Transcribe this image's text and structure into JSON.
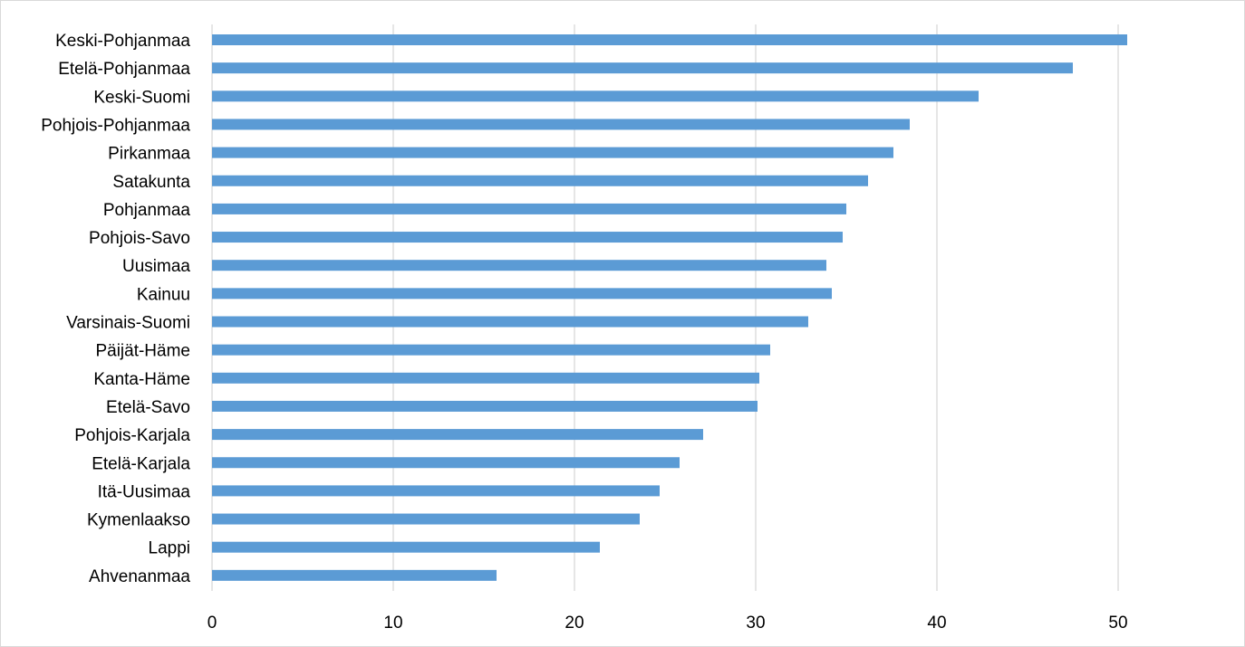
{
  "chart_data": {
    "type": "bar",
    "orientation": "horizontal",
    "title": "",
    "xlabel": "",
    "ylabel": "",
    "categories": [
      "Keski-Pohjanmaa",
      "Etelä-Pohjanmaa",
      "Keski-Suomi",
      "Pohjois-Pohjanmaa",
      "Pirkanmaa",
      "Satakunta",
      "Pohjanmaa",
      "Pohjois-Savo",
      "Uusimaa",
      "Kainuu",
      "Varsinais-Suomi",
      "Päijät-Häme",
      "Kanta-Häme",
      "Etelä-Savo",
      "Pohjois-Karjala",
      "Etelä-Karjala",
      "Itä-Uusimaa",
      "Kymenlaakso",
      "Lappi",
      "Ahvenanmaa"
    ],
    "values": [
      50.5,
      47.5,
      42.3,
      38.5,
      37.6,
      36.2,
      35.0,
      34.8,
      33.9,
      34.2,
      32.9,
      30.8,
      30.2,
      30.1,
      27.1,
      25.8,
      24.7,
      23.6,
      21.4,
      15.7
    ],
    "xlim": [
      0,
      55
    ],
    "xticks": [
      "0",
      "10",
      "20",
      "30",
      "40",
      "50"
    ],
    "grid": "vertical",
    "bar_color": "#5b9bd5",
    "grid_color": "#d9d9d9",
    "legend": "none"
  }
}
